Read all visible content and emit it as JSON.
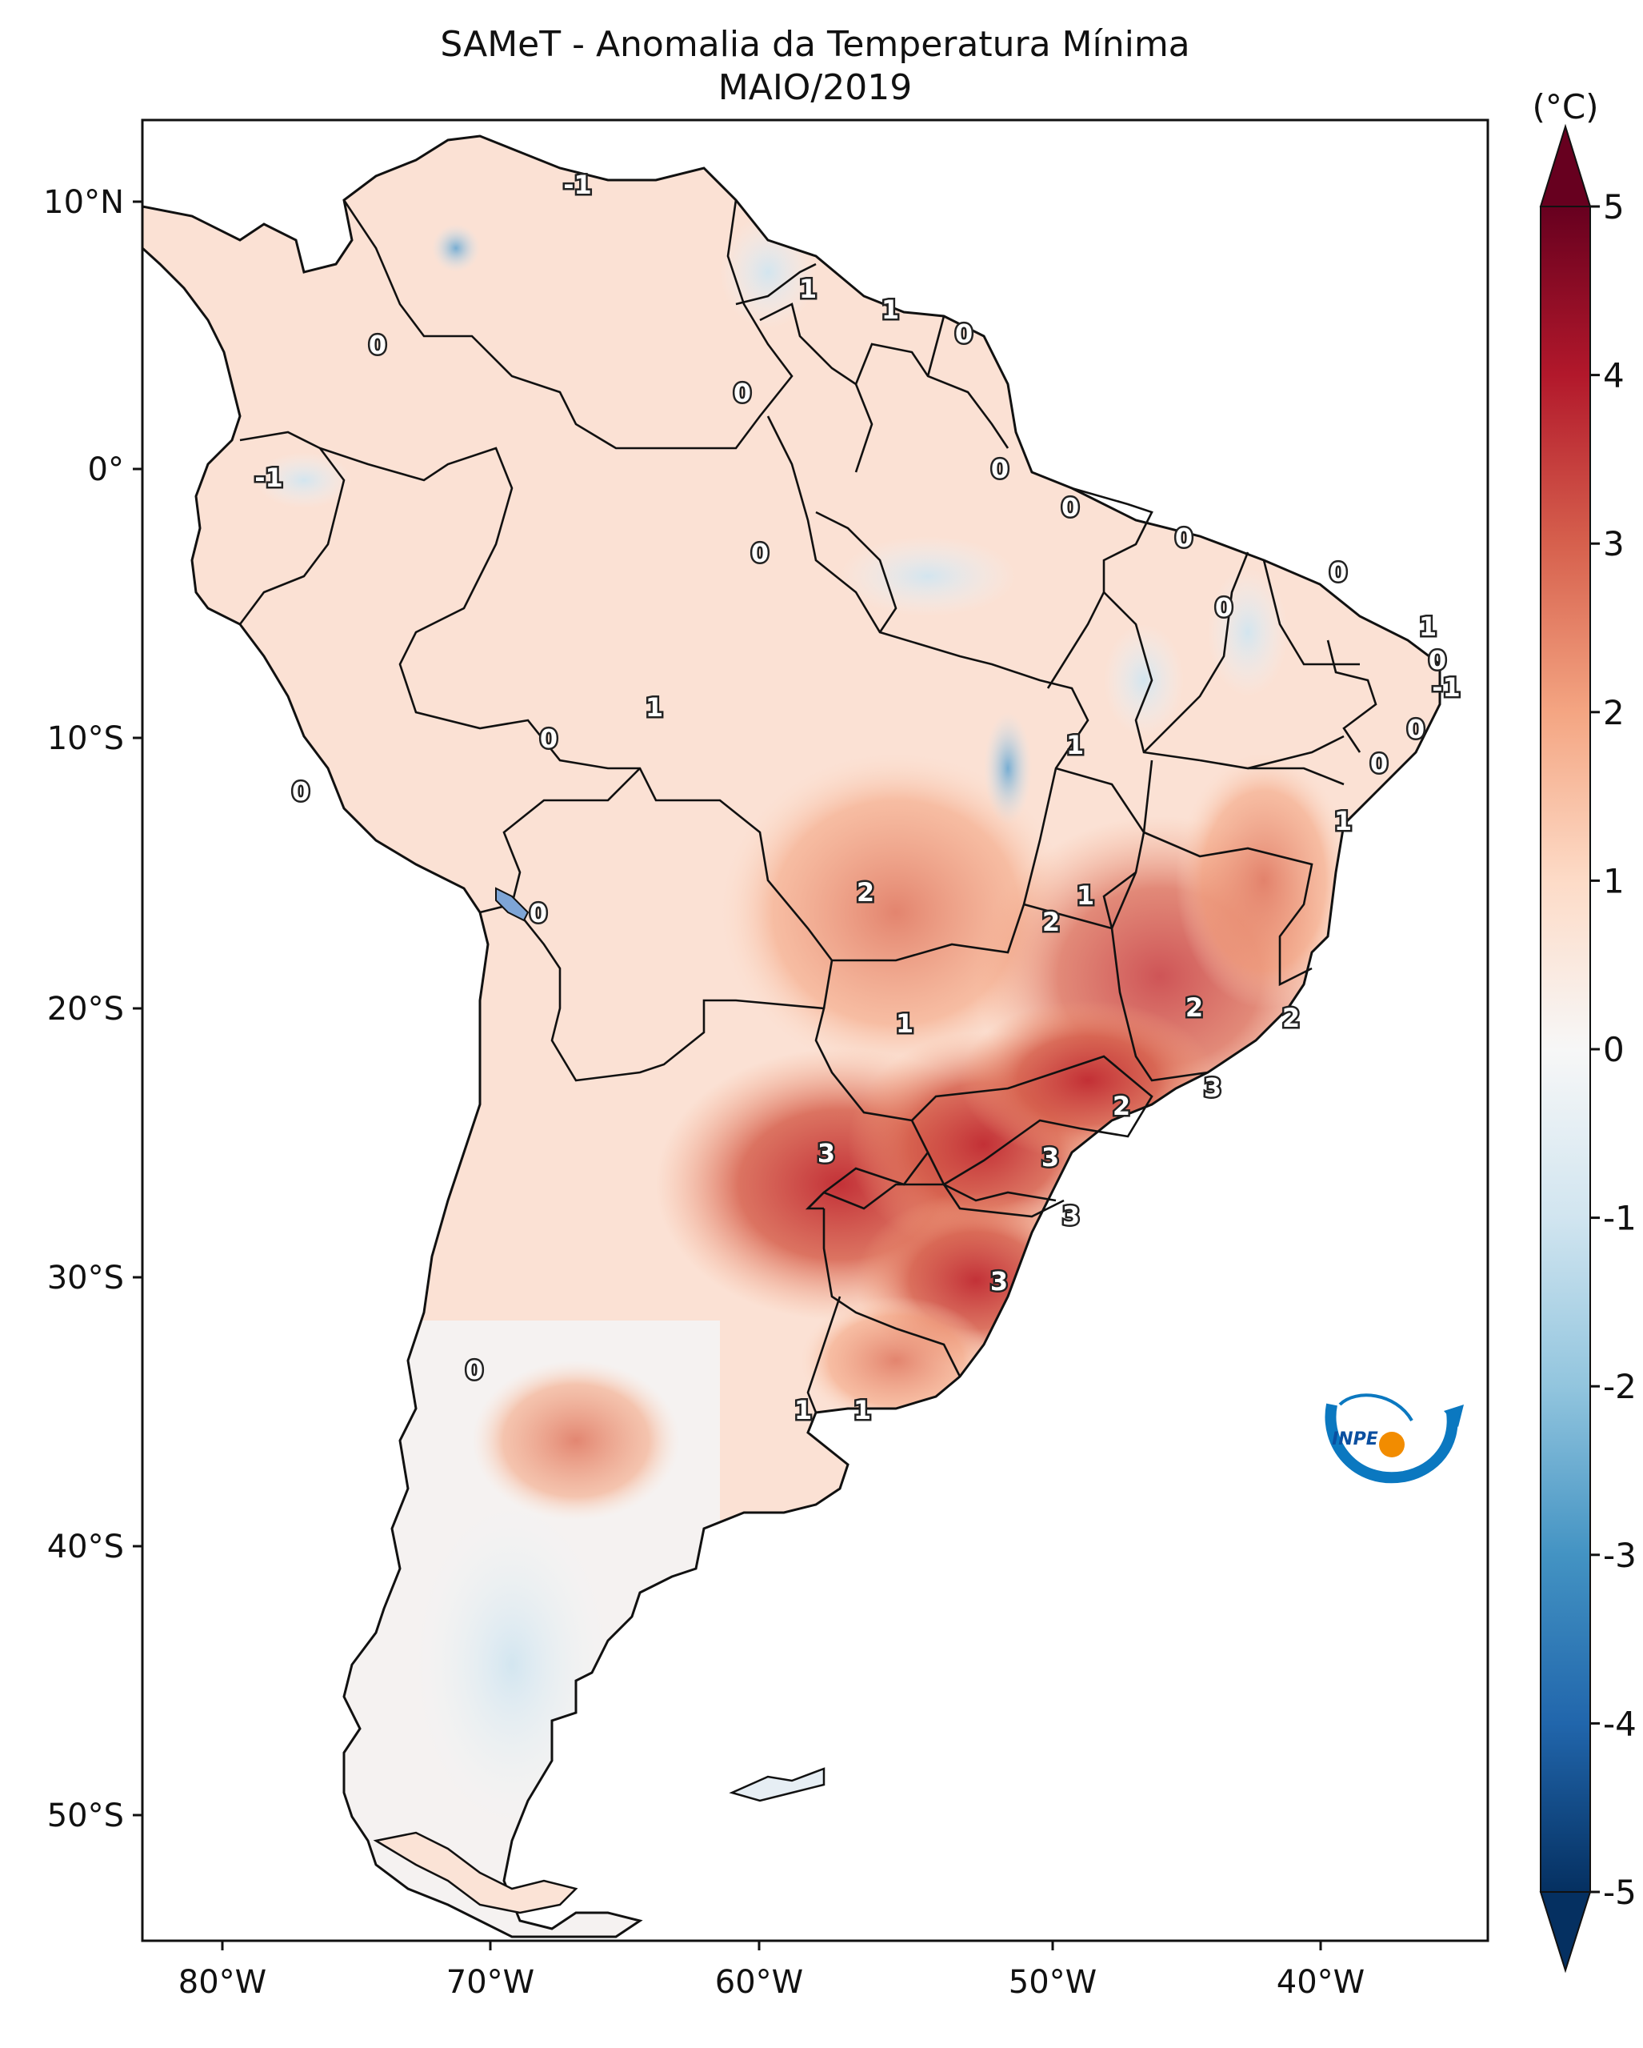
{
  "title": {
    "line1": "SAMeT - Anomalia da Temperatura Mínima",
    "line2": "MAIO/2019"
  },
  "axes": {
    "lon_labels": [
      "80°W",
      "70°W",
      "60°W",
      "50°W",
      "40°W"
    ],
    "lat_labels": [
      "10°N",
      "0°",
      "10°S",
      "20°S",
      "30°S",
      "40°S",
      "50°S"
    ]
  },
  "colorbar": {
    "unit": "(°C)",
    "ticks": [
      "5",
      "4",
      "3",
      "2",
      "1",
      "0",
      "-1",
      "-2",
      "-3",
      "-4",
      "-5"
    ],
    "colors": {
      "max": "#67001f",
      "high": "#b2182b",
      "mid_high": "#d6604d",
      "low_high": "#f4a582",
      "light_warm": "#fddbc7",
      "zero": "#f7f7f7",
      "light_cool": "#d1e5f0",
      "low_low": "#92c5de",
      "mid_low": "#4393c3",
      "low": "#2166ac",
      "min": "#053061"
    }
  },
  "contour_labels": [
    "-1",
    "1",
    "1",
    "0",
    "0",
    "0",
    "0",
    "-1",
    "0",
    "0",
    "0",
    "0",
    "0",
    "1",
    "0",
    "1",
    "-1",
    "0",
    "0",
    "1",
    "1",
    "0",
    "0",
    "1",
    "0",
    "2",
    "2",
    "1",
    "1",
    "2",
    "2",
    "2",
    "3",
    "3",
    "2",
    "3",
    "3",
    "3",
    "1",
    "1",
    "0"
  ],
  "logo": {
    "text": "INPE"
  }
}
